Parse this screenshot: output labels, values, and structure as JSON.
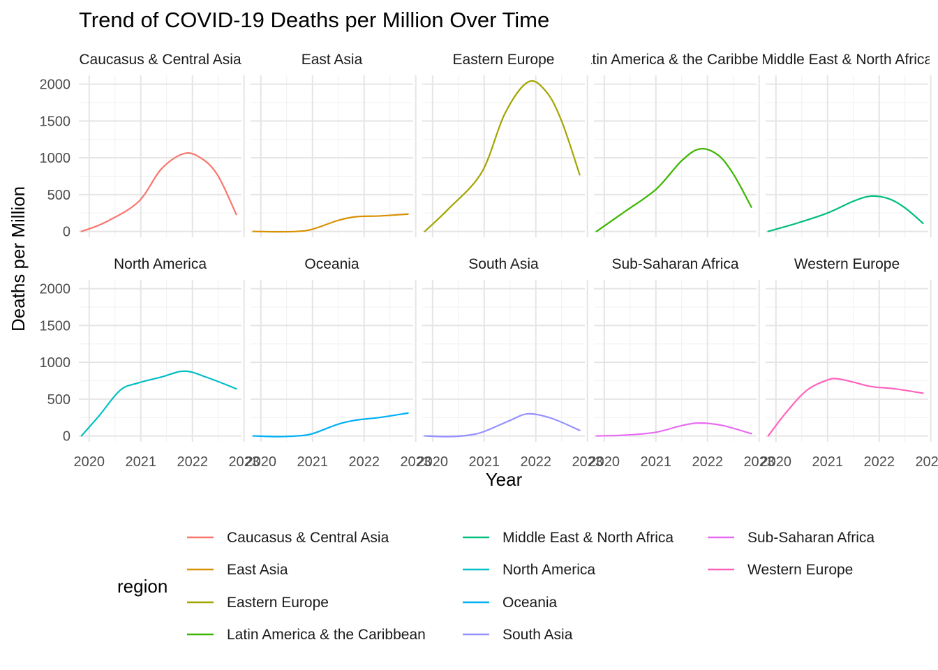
{
  "chart_data": {
    "type": "line",
    "title": "Trend of COVID-19 Deaths per Million Over Time",
    "xlabel": "Year",
    "ylabel": "Deaths per Million",
    "xlim": [
      2019.8,
      2022.95
    ],
    "ylim": [
      -80,
      2120
    ],
    "x_ticks": [
      "2020",
      "2021",
      "2022",
      "2023"
    ],
    "y_ticks": [
      "0",
      "500",
      "1000",
      "1500",
      "2000"
    ],
    "grid": true,
    "facet_layout": {
      "rows": 2,
      "cols": 5
    },
    "legend": {
      "title": "region",
      "position": "bottom",
      "columns": 3
    },
    "series": [
      {
        "name": "Caucasus & Central Asia",
        "color": "#F8766D",
        "x": [
          2019.85,
          2020.3,
          2020.95,
          2021.4,
          2021.85,
          2022.2,
          2022.5,
          2022.85
        ],
        "values": [
          0,
          120,
          400,
          850,
          1060,
          980,
          750,
          230
        ]
      },
      {
        "name": "East Asia",
        "color": "#D89000",
        "x": [
          2019.85,
          2020.3,
          2020.7,
          2021.0,
          2021.5,
          2021.85,
          2022.3,
          2022.85
        ],
        "values": [
          0,
          -5,
          0,
          30,
          150,
          200,
          210,
          235
        ]
      },
      {
        "name": "Eastern Europe",
        "color": "#A3A500",
        "x": [
          2019.85,
          2020.3,
          2020.95,
          2021.4,
          2021.85,
          2022.2,
          2022.5,
          2022.85
        ],
        "values": [
          0,
          300,
          800,
          1600,
          2030,
          1900,
          1500,
          770
        ]
      },
      {
        "name": "Latin America & the Caribbean",
        "color": "#39B600",
        "x": [
          2019.85,
          2020.4,
          2021.0,
          2021.5,
          2021.85,
          2022.2,
          2022.5,
          2022.85
        ],
        "values": [
          0,
          270,
          570,
          960,
          1120,
          1040,
          780,
          330
        ]
      },
      {
        "name": "Middle East & North Africa",
        "color": "#00BF7D",
        "x": [
          2019.85,
          2020.4,
          2021.0,
          2021.5,
          2021.85,
          2022.2,
          2022.5,
          2022.85
        ],
        "values": [
          0,
          110,
          250,
          410,
          480,
          440,
          320,
          110
        ]
      },
      {
        "name": "North America",
        "color": "#00BFC4",
        "x": [
          2019.85,
          2020.2,
          2020.6,
          2020.95,
          2021.4,
          2021.85,
          2022.3,
          2022.85
        ],
        "values": [
          0,
          280,
          620,
          720,
          800,
          880,
          790,
          640
        ]
      },
      {
        "name": "Oceania",
        "color": "#00B0F6",
        "x": [
          2019.85,
          2020.3,
          2020.7,
          2021.0,
          2021.5,
          2021.85,
          2022.3,
          2022.85
        ],
        "values": [
          0,
          -10,
          0,
          30,
          160,
          215,
          250,
          310
        ]
      },
      {
        "name": "South Asia",
        "color": "#9590FF",
        "x": [
          2019.85,
          2020.3,
          2020.7,
          2021.0,
          2021.5,
          2021.85,
          2022.3,
          2022.85
        ],
        "values": [
          0,
          -10,
          10,
          60,
          210,
          300,
          240,
          75
        ]
      },
      {
        "name": "Sub-Saharan Africa",
        "color": "#E76BF3",
        "x": [
          2019.85,
          2020.4,
          2021.0,
          2021.5,
          2021.85,
          2022.3,
          2022.85
        ],
        "values": [
          0,
          10,
          50,
          140,
          175,
          140,
          30
        ]
      },
      {
        "name": "Western Europe",
        "color": "#FF62BC",
        "x": [
          2019.85,
          2020.2,
          2020.6,
          2021.0,
          2021.2,
          2021.5,
          2021.85,
          2022.3,
          2022.85
        ],
        "values": [
          0,
          320,
          620,
          760,
          775,
          730,
          670,
          640,
          580
        ]
      }
    ]
  }
}
